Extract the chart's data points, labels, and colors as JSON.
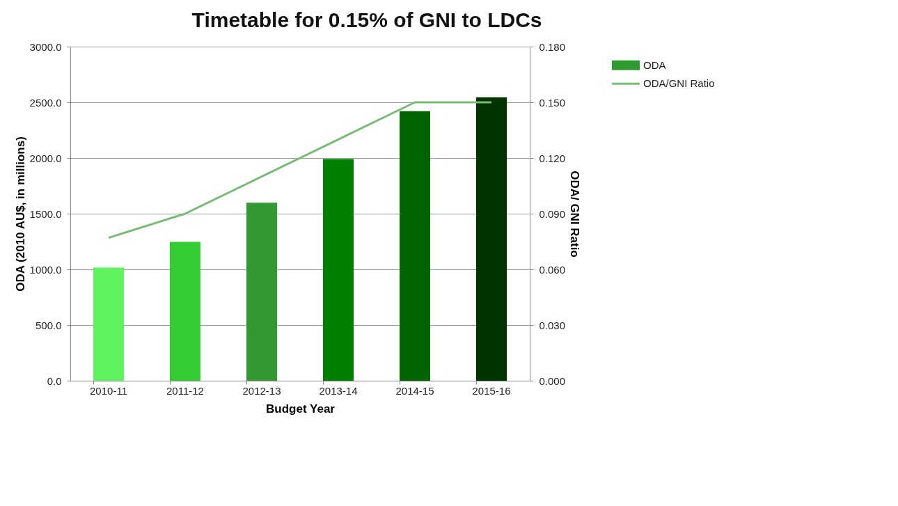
{
  "chart_data": {
    "type": "bar",
    "title": "Timetable for 0.15% of GNI to LDCs",
    "xlabel": "Budget Year",
    "ylabel": "ODA (2010 AU$, in millions)",
    "y2label": "ODA/ GNI Ratio",
    "categories": [
      "2010-11",
      "2011-12",
      "2012-13",
      "2013-14",
      "2014-15",
      "2015-16"
    ],
    "series": [
      {
        "name": "ODA",
        "color": "#2e9b2e",
        "colors": [
          "#5ef25e",
          "#33cc33",
          "#339933",
          "#008000",
          "#006400",
          "#003300"
        ],
        "values": [
          1015,
          1247,
          1599,
          1991,
          2421,
          2546
        ]
      },
      {
        "name": "ODA/GNI Ratio",
        "type": "line",
        "axis": "y2",
        "color": "#77bb77",
        "values": [
          0.077,
          0.09,
          0.11,
          0.13,
          0.15,
          0.15
        ]
      }
    ],
    "ylim": [
      0,
      3000
    ],
    "yticks": [
      {
        "value": 0,
        "label": "0.0"
      },
      {
        "value": 500,
        "label": "500.0"
      },
      {
        "value": 1000,
        "label": "1000.0"
      },
      {
        "value": 1500,
        "label": "1500.0"
      },
      {
        "value": 2000,
        "label": "2000.0"
      },
      {
        "value": 2500,
        "label": "2500.0"
      },
      {
        "value": 3000,
        "label": "3000.0"
      }
    ],
    "y2lim": [
      0,
      0.18
    ],
    "y2ticks": [
      {
        "value": 0,
        "label": "0.000"
      },
      {
        "value": 0.03,
        "label": "0.030"
      },
      {
        "value": 0.06,
        "label": "0.060"
      },
      {
        "value": 0.09,
        "label": "0.090"
      },
      {
        "value": 0.12,
        "label": "0.120"
      },
      {
        "value": 0.15,
        "label": "0.150"
      },
      {
        "value": 0.18,
        "label": "0.180"
      }
    ],
    "grid": "y",
    "legend": "right"
  }
}
